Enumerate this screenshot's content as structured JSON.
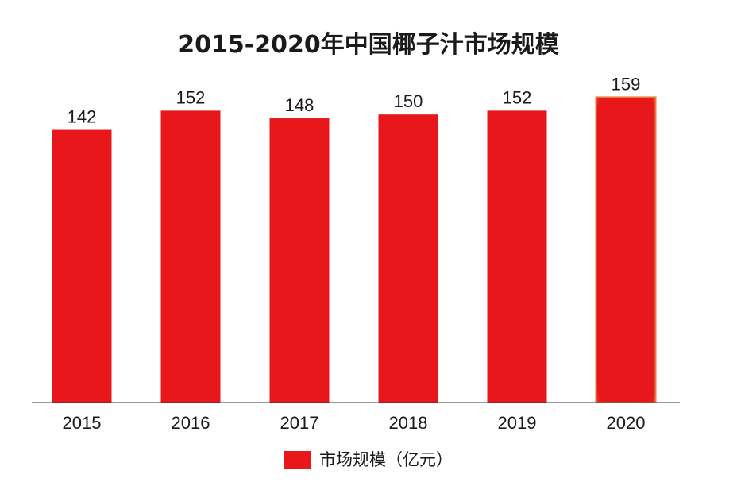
{
  "chart_data": {
    "type": "bar",
    "title": "2015-2020年中国椰子汁市场规模",
    "categories": [
      "2015",
      "2016",
      "2017",
      "2018",
      "2019",
      "2020"
    ],
    "series": [
      {
        "name": "市场规模（亿元）",
        "values": [
          142,
          152,
          148,
          150,
          152,
          159
        ],
        "color": "#e8171c"
      }
    ],
    "highlight_category": "2020",
    "highlight_border_color": "#e87a3c",
    "ylim": [
      0,
      160
    ],
    "grid": false,
    "legend_position": "bottom-center",
    "data_labels": true
  }
}
